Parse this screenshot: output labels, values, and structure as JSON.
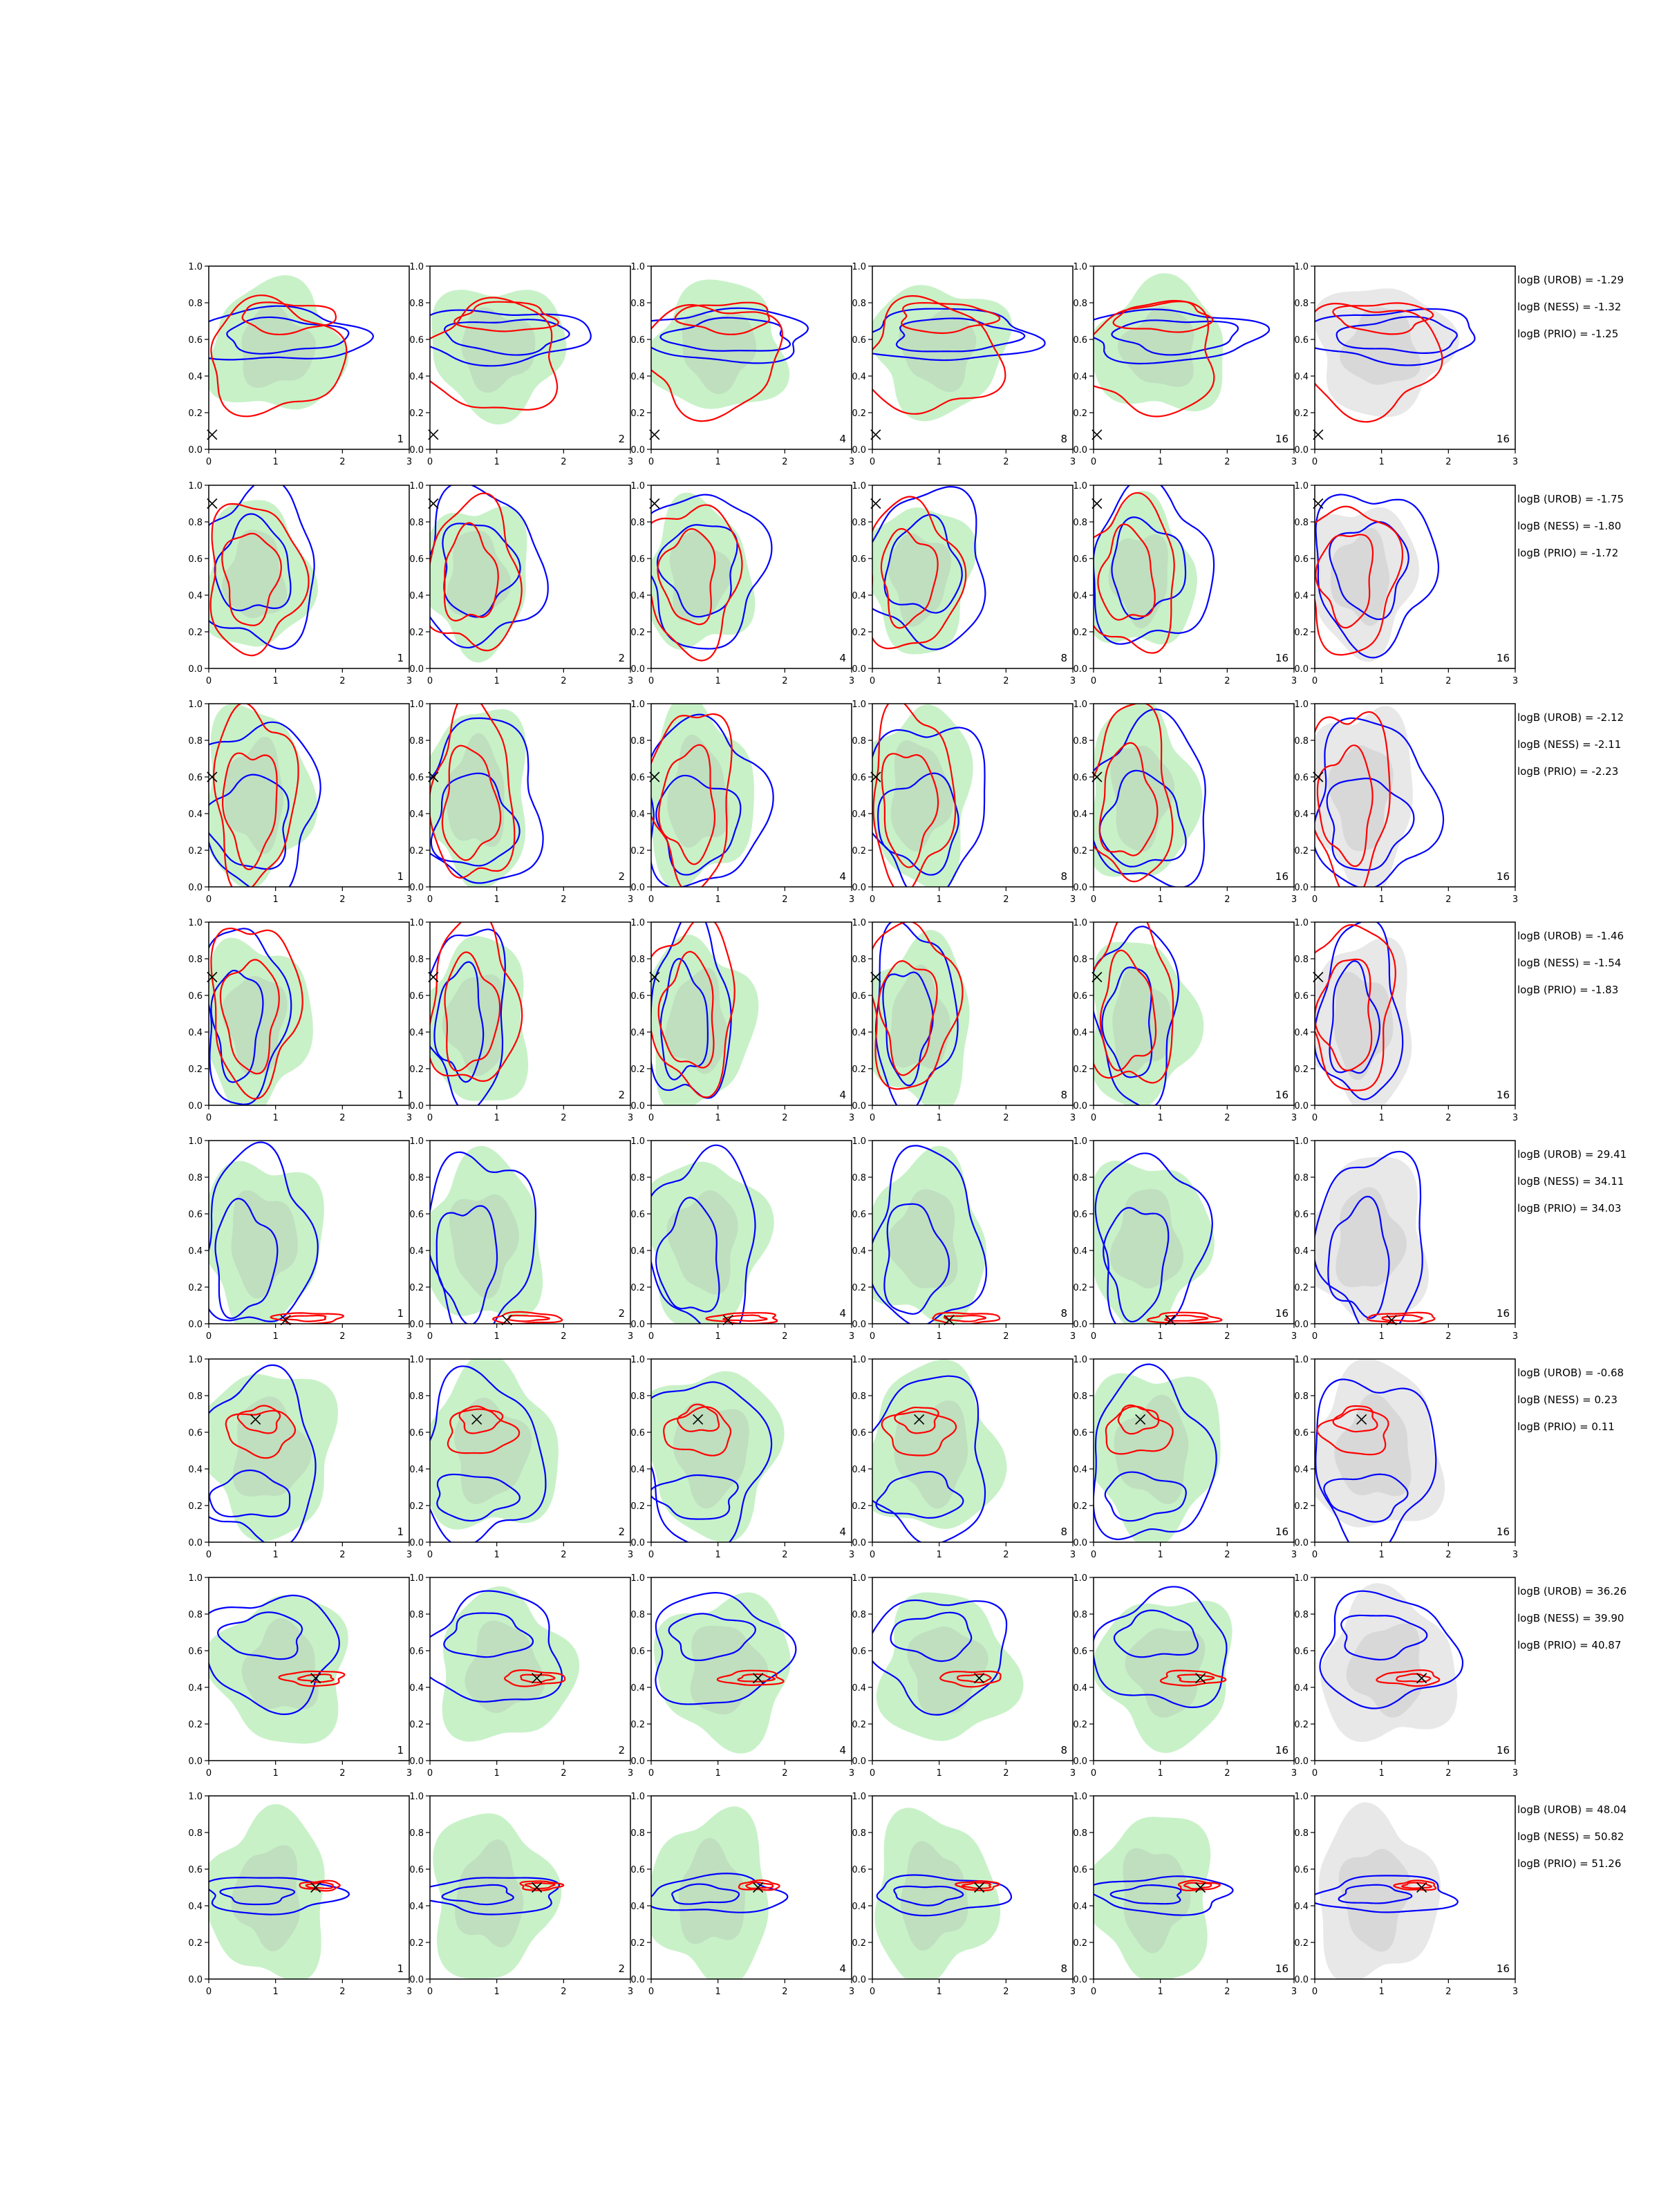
{
  "chart_data": {
    "type": "contour-grid",
    "xlim": [
      0,
      3
    ],
    "ylim": [
      0,
      1
    ],
    "x_ticks": [
      "0",
      "1",
      "2",
      "3"
    ],
    "y_ticks": [
      "0.0",
      "0.2",
      "0.4",
      "0.6",
      "0.8",
      "1.0"
    ],
    "column_labels": [
      "1",
      "2",
      "4",
      "8",
      "16",
      "16"
    ],
    "colors": {
      "blue": "#0000ff",
      "red": "#ff0000",
      "green": "#b6ecb6",
      "gray": "#bcbcbc"
    },
    "rows": [
      {
        "truth": [
          0.05,
          0.08
        ],
        "logB": [
          "logB (UROB) = -1.29",
          "logB (NESS) = -1.32",
          "logB (PRIO) = -1.25"
        ],
        "blue": [
          [
            1.1,
            0.62,
            1.3,
            0.14
          ],
          [
            1.2,
            0.62,
            0.9,
            0.09
          ]
        ],
        "red": [
          [
            0.9,
            0.5,
            1.0,
            0.3
          ],
          [
            1.1,
            0.72,
            0.7,
            0.08
          ]
        ],
        "green": [
          [
            1.0,
            0.55,
            1.0,
            0.35
          ]
        ]
      },
      {
        "truth": [
          0.05,
          0.9
        ],
        "logB": [
          "logB (UROB) = -1.75",
          "logB (NESS) = -1.80",
          "logB (PRIO) = -1.72"
        ],
        "blue": [
          [
            0.8,
            0.55,
            0.9,
            0.42
          ],
          [
            0.75,
            0.55,
            0.55,
            0.25
          ]
        ],
        "red": [
          [
            0.6,
            0.5,
            0.7,
            0.4
          ],
          [
            0.55,
            0.5,
            0.4,
            0.25
          ]
        ],
        "green": [
          [
            0.7,
            0.5,
            0.8,
            0.4
          ]
        ]
      },
      {
        "truth": [
          0.05,
          0.6
        ],
        "logB": [
          "logB (UROB) = -2.12",
          "logB (NESS) = -2.11",
          "logB (PRIO) = -2.23"
        ],
        "blue": [
          [
            0.8,
            0.45,
            0.9,
            0.45
          ],
          [
            0.7,
            0.35,
            0.6,
            0.25
          ]
        ],
        "red": [
          [
            0.6,
            0.5,
            0.6,
            0.48
          ],
          [
            0.55,
            0.45,
            0.4,
            0.3
          ]
        ],
        "green": [
          [
            0.7,
            0.5,
            0.8,
            0.48
          ]
        ]
      },
      {
        "truth": [
          0.05,
          0.7
        ],
        "logB": [
          "logB (UROB) = -1.46",
          "logB (NESS) = -1.54",
          "logB (PRIO) = -1.83"
        ],
        "blue": [
          [
            0.6,
            0.5,
            0.6,
            0.48
          ],
          [
            0.5,
            0.45,
            0.35,
            0.3
          ]
        ],
        "red": [
          [
            0.6,
            0.55,
            0.65,
            0.45
          ],
          [
            0.55,
            0.5,
            0.4,
            0.3
          ]
        ],
        "green": [
          [
            0.7,
            0.45,
            0.8,
            0.45
          ]
        ]
      },
      {
        "truth": [
          1.15,
          0.02
        ],
        "logB": [
          "logB (UROB) = 29.41",
          "logB (NESS) = 34.11",
          "logB (PRIO) = 34.03"
        ],
        "blue": [
          [
            0.8,
            0.45,
            0.8,
            0.48
          ],
          [
            0.6,
            0.35,
            0.45,
            0.3
          ]
        ],
        "red": [
          [
            1.4,
            0.03,
            0.5,
            0.03
          ],
          [
            1.4,
            0.03,
            0.3,
            0.015
          ]
        ],
        "green": [
          [
            0.8,
            0.45,
            0.9,
            0.45
          ]
        ]
      },
      {
        "truth": [
          0.7,
          0.67
        ],
        "logB": [
          "logB (UROB) = -0.68",
          "logB (NESS) = 0.23",
          "logB (PRIO) = 0.11"
        ],
        "blue": [
          [
            0.8,
            0.45,
            0.9,
            0.45
          ],
          [
            0.7,
            0.25,
            0.6,
            0.12
          ]
        ],
        "red": [
          [
            0.7,
            0.6,
            0.5,
            0.12
          ],
          [
            0.7,
            0.67,
            0.3,
            0.07
          ]
        ],
        "green": [
          [
            0.9,
            0.5,
            1.0,
            0.45
          ]
        ]
      },
      {
        "truth": [
          1.6,
          0.45
        ],
        "logB": [
          "logB (UROB) = 36.26",
          "logB (NESS) = 39.90",
          "logB (PRIO) = 40.87"
        ],
        "blue": [
          [
            1.0,
            0.6,
            1.0,
            0.3
          ],
          [
            0.9,
            0.68,
            0.6,
            0.12
          ]
        ],
        "red": [
          [
            1.5,
            0.45,
            0.45,
            0.04
          ],
          [
            1.55,
            0.45,
            0.25,
            0.02
          ]
        ],
        "green": [
          [
            1.1,
            0.5,
            1.0,
            0.4
          ]
        ]
      },
      {
        "truth": [
          1.6,
          0.5
        ],
        "logB": [
          "logB (UROB) = 48.04",
          "logB (NESS) = 50.82",
          "logB (PRIO) = 51.26"
        ],
        "blue": [
          [
            1.0,
            0.46,
            1.0,
            0.1
          ],
          [
            0.8,
            0.46,
            0.5,
            0.05
          ]
        ],
        "red": [
          [
            1.6,
            0.51,
            0.3,
            0.025
          ],
          [
            1.6,
            0.51,
            0.2,
            0.015
          ]
        ],
        "green": [
          [
            0.9,
            0.45,
            0.9,
            0.45
          ]
        ]
      }
    ]
  }
}
